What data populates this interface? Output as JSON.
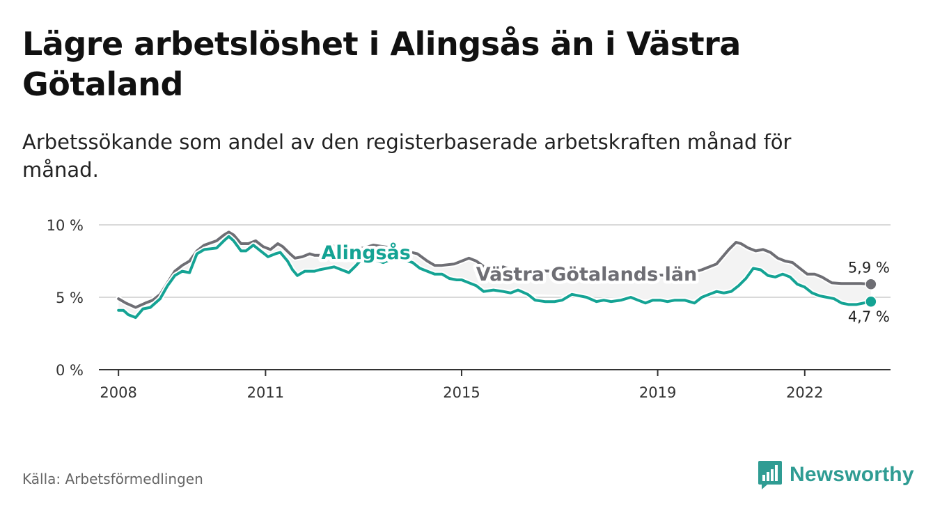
{
  "header": {
    "title": "Lägre arbetslöshet i Alingsås än i Västra Götaland",
    "subtitle": "Arbetssökande som andel av den registerbaserade arbetskraften månad för månad."
  },
  "footer": {
    "source": "Källa: Arbetsförmedlingen",
    "brand": "Newsworthy"
  },
  "colors": {
    "alingsas": "#14a394",
    "vastra": "#6e6e74",
    "band": "#f3f3f3",
    "grid": "#d9d9d9",
    "axis": "#333333",
    "brand": "#2f9c93"
  },
  "chart_data": {
    "type": "line",
    "title": "Lägre arbetslöshet i Alingsås än i Västra Götaland",
    "xlabel": "",
    "ylabel": "",
    "xlim": [
      2007.6,
      2023.75
    ],
    "ylim": [
      0,
      10
    ],
    "y_ticks": [
      0,
      5,
      10
    ],
    "y_tick_labels": [
      "0 %",
      "5 %",
      "10 %"
    ],
    "x_ticks": [
      2008,
      2011,
      2015,
      2019,
      2022
    ],
    "x_tick_labels": [
      "2008",
      "2011",
      "2015",
      "2019",
      "2022"
    ],
    "grid": true,
    "series": [
      {
        "name": "Västra Götalands län",
        "label": "Västra Götalands län",
        "end_label": "5,9 %",
        "points": [
          [
            2008.0,
            4.9
          ],
          [
            2008.15,
            4.6
          ],
          [
            2008.35,
            4.3
          ],
          [
            2008.55,
            4.6
          ],
          [
            2008.7,
            4.8
          ],
          [
            2008.85,
            5.2
          ],
          [
            2009.0,
            6.0
          ],
          [
            2009.15,
            6.8
          ],
          [
            2009.3,
            7.2
          ],
          [
            2009.45,
            7.5
          ],
          [
            2009.6,
            8.2
          ],
          [
            2009.75,
            8.6
          ],
          [
            2010.0,
            8.9
          ],
          [
            2010.15,
            9.3
          ],
          [
            2010.25,
            9.5
          ],
          [
            2010.35,
            9.3
          ],
          [
            2010.5,
            8.7
          ],
          [
            2010.65,
            8.7
          ],
          [
            2010.8,
            8.9
          ],
          [
            2010.95,
            8.5
          ],
          [
            2011.1,
            8.3
          ],
          [
            2011.25,
            8.7
          ],
          [
            2011.35,
            8.5
          ],
          [
            2011.5,
            8.0
          ],
          [
            2011.6,
            7.7
          ],
          [
            2011.75,
            7.8
          ],
          [
            2011.9,
            8.0
          ],
          [
            2012.0,
            7.9
          ],
          [
            2012.15,
            7.9
          ],
          [
            2012.35,
            8.6
          ],
          [
            2012.5,
            8.4
          ],
          [
            2012.7,
            8.3
          ],
          [
            2013.0,
            8.4
          ],
          [
            2013.2,
            8.6
          ],
          [
            2013.4,
            8.5
          ],
          [
            2013.6,
            8.4
          ],
          [
            2013.85,
            8.2
          ],
          [
            2014.1,
            8.0
          ],
          [
            2014.3,
            7.5
          ],
          [
            2014.45,
            7.2
          ],
          [
            2014.6,
            7.2
          ],
          [
            2014.85,
            7.3
          ],
          [
            2015.0,
            7.5
          ],
          [
            2015.15,
            7.7
          ],
          [
            2015.3,
            7.5
          ],
          [
            2015.5,
            7.0
          ],
          [
            2015.65,
            6.9
          ],
          [
            2015.85,
            7.1
          ],
          [
            2016.0,
            6.9
          ],
          [
            2019.3,
            6.5
          ],
          [
            2019.6,
            6.6
          ],
          [
            2019.9,
            6.9
          ],
          [
            2020.2,
            7.3
          ],
          [
            2020.45,
            8.3
          ],
          [
            2020.6,
            8.8
          ],
          [
            2020.7,
            8.7
          ],
          [
            2020.85,
            8.4
          ],
          [
            2021.0,
            8.2
          ],
          [
            2021.15,
            8.3
          ],
          [
            2021.3,
            8.1
          ],
          [
            2021.45,
            7.7
          ],
          [
            2021.6,
            7.5
          ],
          [
            2021.75,
            7.4
          ],
          [
            2021.9,
            7.0
          ],
          [
            2022.05,
            6.6
          ],
          [
            2022.2,
            6.6
          ],
          [
            2022.35,
            6.4
          ],
          [
            2022.55,
            6.0
          ],
          [
            2022.75,
            5.95
          ],
          [
            2023.0,
            5.95
          ],
          [
            2023.15,
            5.95
          ],
          [
            2023.35,
            5.9
          ]
        ]
      },
      {
        "name": "Alingsås",
        "label": "Alingsås",
        "end_label": "4,7 %",
        "points": [
          [
            2008.0,
            4.1
          ],
          [
            2008.1,
            4.1
          ],
          [
            2008.2,
            3.8
          ],
          [
            2008.35,
            3.6
          ],
          [
            2008.5,
            4.2
          ],
          [
            2008.65,
            4.3
          ],
          [
            2008.85,
            4.9
          ],
          [
            2009.0,
            5.8
          ],
          [
            2009.15,
            6.5
          ],
          [
            2009.3,
            6.8
          ],
          [
            2009.45,
            6.7
          ],
          [
            2009.6,
            8.0
          ],
          [
            2009.75,
            8.3
          ],
          [
            2010.0,
            8.4
          ],
          [
            2010.15,
            8.9
          ],
          [
            2010.25,
            9.2
          ],
          [
            2010.35,
            8.9
          ],
          [
            2010.5,
            8.2
          ],
          [
            2010.6,
            8.2
          ],
          [
            2010.75,
            8.6
          ],
          [
            2010.9,
            8.2
          ],
          [
            2011.05,
            7.8
          ],
          [
            2011.2,
            8.0
          ],
          [
            2011.3,
            8.1
          ],
          [
            2011.45,
            7.5
          ],
          [
            2011.55,
            6.9
          ],
          [
            2011.65,
            6.5
          ],
          [
            2011.8,
            6.8
          ],
          [
            2012.0,
            6.8
          ],
          [
            2012.1,
            6.9
          ],
          [
            2012.25,
            7.0
          ],
          [
            2012.4,
            7.1
          ],
          [
            2012.55,
            6.9
          ],
          [
            2012.7,
            6.7
          ],
          [
            2012.85,
            7.2
          ],
          [
            2013.0,
            7.8
          ],
          [
            2013.2,
            7.6
          ],
          [
            2013.4,
            7.4
          ],
          [
            2013.55,
            7.6
          ],
          [
            2013.8,
            7.6
          ],
          [
            2014.0,
            7.4
          ],
          [
            2014.15,
            7.0
          ],
          [
            2014.3,
            6.8
          ],
          [
            2014.45,
            6.6
          ],
          [
            2014.6,
            6.6
          ],
          [
            2014.75,
            6.3
          ],
          [
            2014.9,
            6.2
          ],
          [
            2015.0,
            6.2
          ],
          [
            2015.15,
            6.0
          ],
          [
            2015.3,
            5.8
          ],
          [
            2015.45,
            5.4
          ],
          [
            2015.65,
            5.5
          ],
          [
            2015.85,
            5.4
          ],
          [
            2016.0,
            5.3
          ],
          [
            2016.15,
            5.5
          ],
          [
            2016.35,
            5.2
          ],
          [
            2016.5,
            4.8
          ],
          [
            2016.7,
            4.7
          ],
          [
            2016.9,
            4.7
          ],
          [
            2017.05,
            4.8
          ],
          [
            2017.25,
            5.2
          ],
          [
            2017.4,
            5.1
          ],
          [
            2017.55,
            5.0
          ],
          [
            2017.75,
            4.7
          ],
          [
            2017.9,
            4.8
          ],
          [
            2018.05,
            4.7
          ],
          [
            2018.25,
            4.8
          ],
          [
            2018.45,
            5.0
          ],
          [
            2018.6,
            4.8
          ],
          [
            2018.75,
            4.6
          ],
          [
            2018.9,
            4.8
          ],
          [
            2019.05,
            4.8
          ],
          [
            2019.2,
            4.7
          ],
          [
            2019.35,
            4.8
          ],
          [
            2019.55,
            4.8
          ],
          [
            2019.75,
            4.6
          ],
          [
            2019.9,
            5.0
          ],
          [
            2020.05,
            5.2
          ],
          [
            2020.2,
            5.4
          ],
          [
            2020.35,
            5.3
          ],
          [
            2020.5,
            5.4
          ],
          [
            2020.65,
            5.8
          ],
          [
            2020.8,
            6.3
          ],
          [
            2020.95,
            7.0
          ],
          [
            2021.1,
            6.9
          ],
          [
            2021.25,
            6.5
          ],
          [
            2021.4,
            6.4
          ],
          [
            2021.55,
            6.6
          ],
          [
            2021.7,
            6.4
          ],
          [
            2021.85,
            5.9
          ],
          [
            2022.0,
            5.7
          ],
          [
            2022.15,
            5.3
          ],
          [
            2022.3,
            5.1
          ],
          [
            2022.45,
            5.0
          ],
          [
            2022.6,
            4.9
          ],
          [
            2022.75,
            4.6
          ],
          [
            2022.9,
            4.5
          ],
          [
            2023.05,
            4.5
          ],
          [
            2023.2,
            4.6
          ],
          [
            2023.35,
            4.7
          ]
        ]
      }
    ]
  }
}
